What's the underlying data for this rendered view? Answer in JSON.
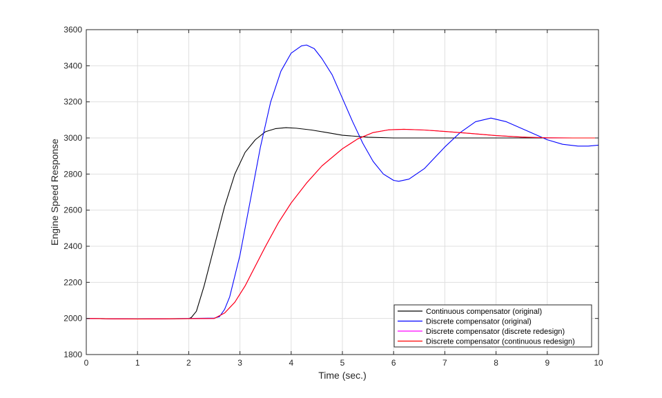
{
  "chart_data": {
    "type": "line",
    "title": "",
    "xlabel": "Time (sec.)",
    "ylabel": "Engine Speed Response",
    "xlim": [
      0,
      10
    ],
    "ylim": [
      1800,
      3600
    ],
    "xticks": [
      0,
      1,
      2,
      3,
      4,
      5,
      6,
      7,
      8,
      9,
      10
    ],
    "yticks": [
      1800,
      2000,
      2200,
      2400,
      2600,
      2800,
      3000,
      3200,
      3400,
      3600
    ],
    "grid": true,
    "legend_position": "bottom-right",
    "series": [
      {
        "name": "Continuous compensator (original)",
        "color": "#000000",
        "points": [
          [
            0,
            2000
          ],
          [
            0.5,
            1998
          ],
          [
            1.0,
            1997
          ],
          [
            1.5,
            1998
          ],
          [
            2.0,
            1999
          ],
          [
            2.05,
            2005
          ],
          [
            2.15,
            2040
          ],
          [
            2.3,
            2180
          ],
          [
            2.5,
            2400
          ],
          [
            2.7,
            2620
          ],
          [
            2.9,
            2800
          ],
          [
            3.1,
            2920
          ],
          [
            3.3,
            2990
          ],
          [
            3.5,
            3035
          ],
          [
            3.7,
            3052
          ],
          [
            3.9,
            3057
          ],
          [
            4.1,
            3054
          ],
          [
            4.4,
            3044
          ],
          [
            4.7,
            3030
          ],
          [
            5.0,
            3015
          ],
          [
            5.5,
            3004
          ],
          [
            6.0,
            3000
          ],
          [
            7.0,
            3000
          ],
          [
            8.0,
            3000
          ],
          [
            9.0,
            3000
          ],
          [
            10.0,
            3000
          ]
        ]
      },
      {
        "name": "Discrete compensator (original)",
        "color": "#0000ff",
        "points": [
          [
            0,
            2000
          ],
          [
            0.5,
            1998
          ],
          [
            1.0,
            1997
          ],
          [
            1.5,
            1998
          ],
          [
            2.0,
            2000
          ],
          [
            2.5,
            2002
          ],
          [
            2.6,
            2010
          ],
          [
            2.7,
            2050
          ],
          [
            2.8,
            2120
          ],
          [
            3.0,
            2350
          ],
          [
            3.2,
            2650
          ],
          [
            3.4,
            2950
          ],
          [
            3.6,
            3200
          ],
          [
            3.8,
            3370
          ],
          [
            4.0,
            3470
          ],
          [
            4.2,
            3510
          ],
          [
            4.3,
            3515
          ],
          [
            4.45,
            3495
          ],
          [
            4.6,
            3440
          ],
          [
            4.8,
            3350
          ],
          [
            5.0,
            3220
          ],
          [
            5.2,
            3090
          ],
          [
            5.4,
            2970
          ],
          [
            5.6,
            2870
          ],
          [
            5.8,
            2800
          ],
          [
            6.0,
            2765
          ],
          [
            6.1,
            2760
          ],
          [
            6.3,
            2772
          ],
          [
            6.6,
            2830
          ],
          [
            7.0,
            2950
          ],
          [
            7.3,
            3030
          ],
          [
            7.6,
            3090
          ],
          [
            7.9,
            3110
          ],
          [
            8.2,
            3090
          ],
          [
            8.6,
            3040
          ],
          [
            9.0,
            2990
          ],
          [
            9.3,
            2965
          ],
          [
            9.6,
            2955
          ],
          [
            9.8,
            2955
          ],
          [
            10.0,
            2960
          ]
        ]
      },
      {
        "name": "Discrete compensator (discrete redesign)",
        "color": "#ff00ff",
        "points": [
          [
            0,
            2000
          ],
          [
            0.5,
            1998
          ],
          [
            1.0,
            1997
          ],
          [
            1.5,
            1998
          ],
          [
            2.0,
            1999
          ],
          [
            2.5,
            2000
          ],
          [
            2.7,
            2030
          ],
          [
            2.9,
            2090
          ],
          [
            3.1,
            2180
          ],
          [
            3.3,
            2290
          ],
          [
            3.5,
            2400
          ],
          [
            3.75,
            2530
          ],
          [
            4.0,
            2640
          ],
          [
            4.3,
            2750
          ],
          [
            4.6,
            2845
          ],
          [
            5.0,
            2940
          ],
          [
            5.3,
            2995
          ],
          [
            5.6,
            3030
          ],
          [
            5.9,
            3045
          ],
          [
            6.2,
            3048
          ],
          [
            6.6,
            3044
          ],
          [
            7.0,
            3036
          ],
          [
            7.5,
            3025
          ],
          [
            8.0,
            3013
          ],
          [
            8.5,
            3005
          ],
          [
            9.0,
            3001
          ],
          [
            9.5,
            3000
          ],
          [
            10.0,
            3000
          ]
        ]
      },
      {
        "name": "Discrete compensator (continuous redesign)",
        "color": "#ff0000",
        "points": [
          [
            0,
            2000
          ],
          [
            0.5,
            1998
          ],
          [
            1.0,
            1997
          ],
          [
            1.5,
            1998
          ],
          [
            2.0,
            1999
          ],
          [
            2.5,
            2000
          ],
          [
            2.7,
            2030
          ],
          [
            2.9,
            2090
          ],
          [
            3.1,
            2180
          ],
          [
            3.3,
            2290
          ],
          [
            3.5,
            2400
          ],
          [
            3.75,
            2530
          ],
          [
            4.0,
            2640
          ],
          [
            4.3,
            2750
          ],
          [
            4.6,
            2845
          ],
          [
            5.0,
            2940
          ],
          [
            5.3,
            2995
          ],
          [
            5.6,
            3030
          ],
          [
            5.9,
            3045
          ],
          [
            6.2,
            3048
          ],
          [
            6.6,
            3044
          ],
          [
            7.0,
            3036
          ],
          [
            7.5,
            3025
          ],
          [
            8.0,
            3013
          ],
          [
            8.5,
            3005
          ],
          [
            9.0,
            3001
          ],
          [
            9.5,
            3000
          ],
          [
            10.0,
            3000
          ]
        ]
      }
    ]
  }
}
